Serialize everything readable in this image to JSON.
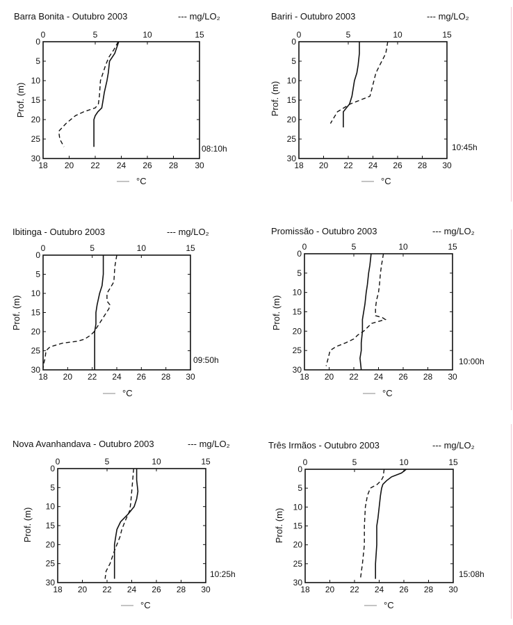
{
  "chart_data": [
    {
      "type": "line",
      "title": "Barra Bonita - Outubro 2003",
      "time": "08:10h",
      "ylabel": "Prof. (m)",
      "ylim": [
        30,
        0
      ],
      "y_ticks": [
        "0",
        "5",
        "10",
        "15",
        "20",
        "25",
        "30"
      ],
      "temp_axis": {
        "range": [
          18,
          30
        ],
        "ticks": [
          "18",
          "20",
          "22",
          "24",
          "26",
          "28",
          "30"
        ],
        "label": "°C",
        "legend_marker": "—"
      },
      "do_axis": {
        "range": [
          0,
          15
        ],
        "ticks": [
          "0",
          "5",
          "10",
          "15"
        ],
        "label": "mg/LO₂",
        "legend_marker": "---"
      },
      "series": [
        {
          "name": "°C",
          "style": "solid",
          "depth": [
            0,
            3,
            5,
            8,
            10,
            13,
            15,
            17,
            18,
            19,
            20,
            27
          ],
          "values": [
            23.8,
            23.5,
            23.1,
            23.0,
            22.9,
            22.7,
            22.6,
            22.5,
            22.2,
            22.0,
            21.9,
            21.9
          ]
        },
        {
          "name": "mg/LO₂",
          "style": "dashed",
          "depth": [
            0,
            2,
            4,
            6,
            10,
            14,
            16,
            17,
            18,
            19,
            21,
            23,
            25,
            27
          ],
          "values": [
            7.2,
            6.8,
            6.3,
            6.0,
            5.5,
            5.4,
            5.3,
            5.0,
            3.9,
            3.1,
            2.2,
            1.5,
            1.6,
            2.0
          ]
        }
      ]
    },
    {
      "type": "line",
      "title": "Bariri - Outubro 2003",
      "time": "10:45h",
      "ylabel": "Prof. (m)",
      "ylim": [
        30,
        0
      ],
      "y_ticks": [
        "0",
        "5",
        "10",
        "15",
        "20",
        "25",
        "30"
      ],
      "temp_axis": {
        "range": [
          18,
          30
        ],
        "ticks": [
          "18",
          "20",
          "22",
          "24",
          "26",
          "28",
          "30"
        ],
        "label": "°C",
        "legend_marker": "—"
      },
      "do_axis": {
        "range": [
          0,
          15
        ],
        "ticks": [
          "0",
          "5",
          "10",
          "15"
        ],
        "label": "mg/LO₂",
        "legend_marker": "---"
      },
      "series": [
        {
          "name": "°C",
          "style": "solid",
          "depth": [
            0,
            3,
            6,
            8,
            10,
            12,
            14,
            16,
            18,
            22
          ],
          "values": [
            22.9,
            22.9,
            22.8,
            22.7,
            22.5,
            22.4,
            22.3,
            22.1,
            21.6,
            21.6
          ]
        },
        {
          "name": "mg/LO₂",
          "style": "dashed",
          "depth": [
            0,
            3,
            6,
            8,
            12,
            14,
            16,
            18,
            21
          ],
          "values": [
            9.0,
            8.8,
            8.2,
            7.8,
            7.4,
            7.2,
            5.2,
            3.9,
            3.2
          ]
        }
      ]
    },
    {
      "type": "line",
      "title": "Ibitinga - Outubro 2003",
      "time": "09:50h",
      "ylabel": "Prof. (m)",
      "ylim": [
        30,
        0
      ],
      "y_ticks": [
        "0",
        "5",
        "10",
        "15",
        "20",
        "25",
        "30"
      ],
      "temp_axis": {
        "range": [
          18,
          30
        ],
        "ticks": [
          "18",
          "20",
          "22",
          "24",
          "26",
          "28",
          "30"
        ],
        "label": "°C",
        "legend_marker": "—"
      },
      "do_axis": {
        "range": [
          0,
          15
        ],
        "ticks": [
          "0",
          "5",
          "10",
          "15"
        ],
        "label": "mg/LO₂",
        "legend_marker": "---"
      },
      "series": [
        {
          "name": "°C",
          "style": "solid",
          "depth": [
            0,
            5,
            8,
            10,
            13,
            15,
            18,
            20,
            23,
            30
          ],
          "values": [
            22.9,
            22.9,
            22.8,
            22.6,
            22.4,
            22.3,
            22.3,
            22.2,
            22.2,
            22.2
          ]
        },
        {
          "name": "mg/LO₂",
          "style": "dashed",
          "depth": [
            0,
            3,
            7,
            10,
            12,
            13,
            14,
            16,
            18,
            20,
            21,
            22,
            22.5,
            23,
            24,
            25,
            27,
            28,
            29.5
          ],
          "values": [
            7.5,
            7.3,
            7.2,
            6.5,
            6.5,
            6.8,
            6.7,
            6.2,
            5.7,
            5.2,
            4.8,
            4.2,
            3.5,
            2.0,
            0.7,
            0.3,
            0.2,
            0.1,
            0
          ]
        }
      ]
    },
    {
      "type": "line",
      "title": "Promissão - Outubro 2003",
      "time": "10:00h",
      "ylabel": "Prof. (m)",
      "ylim": [
        30,
        0
      ],
      "y_ticks": [
        "0",
        "5",
        "10",
        "15",
        "20",
        "25",
        "30"
      ],
      "temp_axis": {
        "range": [
          18,
          30
        ],
        "ticks": [
          "18",
          "20",
          "22",
          "24",
          "26",
          "28",
          "30"
        ],
        "label": "°C",
        "legend_marker": "—"
      },
      "do_axis": {
        "range": [
          0,
          15
        ],
        "ticks": [
          "0",
          "5",
          "10",
          "15"
        ],
        "label": "mg/LO₂",
        "legend_marker": "---"
      },
      "series": [
        {
          "name": "°C",
          "style": "solid",
          "depth": [
            0,
            3,
            5,
            8,
            10,
            13,
            15,
            17,
            18,
            20,
            23,
            25,
            27,
            30
          ],
          "values": [
            23.4,
            23.3,
            23.2,
            23.1,
            23.0,
            22.9,
            22.8,
            22.7,
            22.7,
            22.7,
            22.6,
            22.6,
            22.5,
            22.6
          ]
        },
        {
          "name": "mg/LO₂",
          "style": "dashed",
          "depth": [
            0,
            3,
            5,
            8,
            10,
            12,
            14,
            16,
            16.5,
            17,
            18,
            20,
            21,
            22,
            23,
            24,
            25,
            27,
            29
          ],
          "values": [
            8.0,
            7.8,
            7.7,
            7.6,
            7.5,
            7.3,
            7.2,
            7.2,
            7.9,
            8.2,
            6.8,
            6.0,
            5.4,
            5.0,
            4.2,
            3.2,
            2.6,
            2.4,
            2.2
          ]
        }
      ]
    },
    {
      "type": "line",
      "title": "Nova Avanhandava - Outubro 2003",
      "time": "10:25h",
      "ylabel": "Prof. (m)",
      "ylim": [
        30,
        0
      ],
      "y_ticks": [
        "0",
        "5",
        "10",
        "15",
        "20",
        "25",
        "30"
      ],
      "temp_axis": {
        "range": [
          18,
          30
        ],
        "ticks": [
          "18",
          "20",
          "22",
          "24",
          "26",
          "28",
          "30"
        ],
        "label": "°C",
        "legend_marker": "—"
      },
      "do_axis": {
        "range": [
          0,
          15
        ],
        "ticks": [
          "0",
          "5",
          "10",
          "15"
        ],
        "label": "mg/LO₂",
        "legend_marker": "---"
      },
      "series": [
        {
          "name": "°C",
          "style": "solid",
          "depth": [
            0,
            3,
            6,
            8,
            10,
            12,
            14,
            16,
            18,
            20,
            24,
            29
          ],
          "values": [
            24.4,
            24.4,
            24.5,
            24.4,
            24.2,
            23.7,
            23.1,
            22.8,
            22.7,
            22.6,
            22.6,
            22.6
          ]
        },
        {
          "name": "mg/LO₂",
          "style": "dashed",
          "depth": [
            0,
            3,
            6,
            9,
            11,
            14,
            16,
            18,
            20,
            22,
            25,
            27,
            29
          ],
          "values": [
            7.7,
            7.6,
            7.5,
            7.4,
            7.3,
            6.8,
            6.5,
            6.3,
            6.0,
            5.7,
            5.3,
            4.9,
            4.8
          ]
        }
      ]
    },
    {
      "type": "line",
      "title": "Três Irmãos - Outubro 2003",
      "time": "15:08h",
      "ylabel": "Prof. (m)",
      "ylim": [
        30,
        0
      ],
      "y_ticks": [
        "0",
        "5",
        "10",
        "15",
        "20",
        "25",
        "30"
      ],
      "temp_axis": {
        "range": [
          18,
          30
        ],
        "ticks": [
          "18",
          "20",
          "22",
          "24",
          "26",
          "28",
          "30"
        ],
        "label": "°C",
        "legend_marker": "—"
      },
      "do_axis": {
        "range": [
          0,
          15
        ],
        "ticks": [
          "0",
          "5",
          "10",
          "15"
        ],
        "label": "mg/LO₂",
        "legend_marker": "---"
      },
      "series": [
        {
          "name": "°C",
          "style": "solid",
          "depth": [
            0,
            1,
            2,
            3,
            4,
            5,
            7,
            10,
            13,
            15,
            20,
            25,
            29
          ],
          "values": [
            26.2,
            25.8,
            25.0,
            24.6,
            24.3,
            24.2,
            24.1,
            24.0,
            23.9,
            23.8,
            23.8,
            23.7,
            23.7
          ]
        },
        {
          "name": "mg/LO₂",
          "style": "dashed",
          "depth": [
            0,
            2,
            3,
            4,
            5,
            7,
            10,
            15,
            20,
            25,
            29
          ],
          "values": [
            8.0,
            7.9,
            7.7,
            7.3,
            6.6,
            6.3,
            6.1,
            6.0,
            6.0,
            5.8,
            5.6
          ]
        }
      ]
    }
  ]
}
